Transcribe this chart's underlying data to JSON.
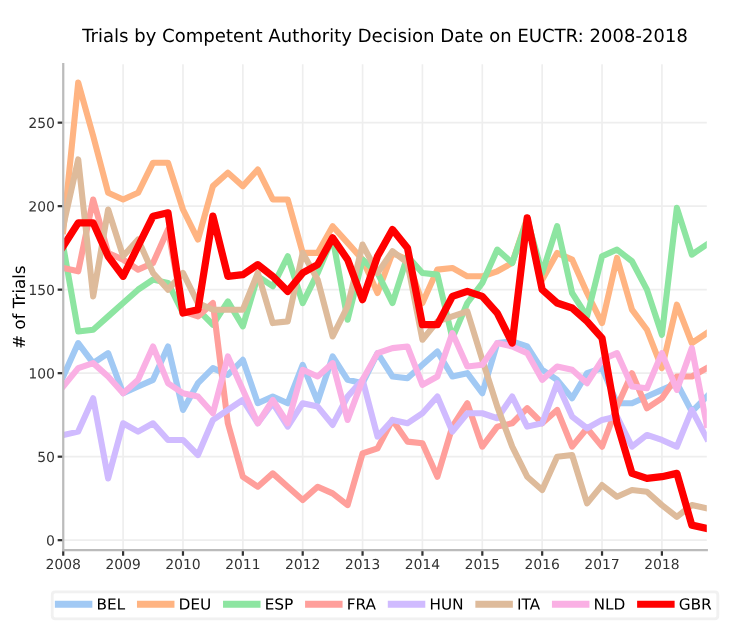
{
  "chart_data": {
    "type": "line",
    "title": "Trials by Competent Authority Decision Date on EUCTR: 2008-2018",
    "ylabel": "# of Trials",
    "x": [
      2008.0,
      2008.25,
      2008.5,
      2008.75,
      2009.0,
      2009.25,
      2009.5,
      2009.75,
      2010.0,
      2010.25,
      2010.5,
      2010.75,
      2011.0,
      2011.25,
      2011.5,
      2011.75,
      2012.0,
      2012.25,
      2012.5,
      2012.75,
      2013.0,
      2013.25,
      2013.5,
      2013.75,
      2014.0,
      2014.25,
      2014.5,
      2014.75,
      2015.0,
      2015.25,
      2015.5,
      2015.75,
      2016.0,
      2016.25,
      2016.5,
      2016.75,
      2017.0,
      2017.25,
      2017.5,
      2017.75,
      2018.0,
      2018.25,
      2018.5,
      2018.75
    ],
    "series": [
      {
        "name": "BEL",
        "color": "#a1c9f4",
        "values": [
          98,
          118,
          106,
          112,
          88,
          92,
          96,
          116,
          78,
          94,
          103,
          99,
          108,
          82,
          86,
          82,
          105,
          83,
          110,
          96,
          94,
          112,
          98,
          97,
          105,
          113,
          98,
          100,
          88,
          118,
          119,
          116,
          102,
          96,
          85,
          100,
          103,
          82,
          82,
          86,
          90,
          94,
          77,
          86
        ]
      },
      {
        "name": "DEU",
        "color": "#ffb482",
        "values": [
          185,
          274,
          242,
          208,
          204,
          208,
          226,
          226,
          198,
          180,
          212,
          220,
          212,
          222,
          204,
          204,
          172,
          172,
          188,
          178,
          168,
          148,
          172,
          168,
          142,
          162,
          163,
          158,
          158,
          161,
          166,
          193,
          156,
          172,
          168,
          148,
          130,
          169,
          138,
          126,
          103,
          141,
          118,
          124
        ]
      },
      {
        "name": "ESP",
        "color": "#8de5a1",
        "values": [
          176,
          125,
          126,
          134,
          142,
          150,
          156,
          154,
          136,
          138,
          129,
          143,
          128,
          158,
          152,
          170,
          142,
          160,
          181,
          132,
          168,
          160,
          142,
          170,
          160,
          159,
          121,
          142,
          154,
          174,
          166,
          192,
          160,
          188,
          148,
          134,
          170,
          174,
          167,
          150,
          123,
          199,
          171,
          177
        ]
      },
      {
        "name": "FRA",
        "color": "#ff9f9b",
        "values": [
          163,
          161,
          204,
          172,
          168,
          162,
          166,
          186,
          137,
          134,
          142,
          70,
          38,
          32,
          40,
          32,
          24,
          32,
          28,
          21,
          52,
          55,
          72,
          59,
          58,
          38,
          68,
          82,
          56,
          68,
          70,
          79,
          70,
          78,
          56,
          67,
          56,
          80,
          100,
          79,
          85,
          98,
          98,
          103
        ]
      },
      {
        "name": "HUN",
        "color": "#d0bbff",
        "values": [
          63,
          65,
          85,
          37,
          70,
          65,
          70,
          60,
          60,
          51,
          72,
          78,
          84,
          70,
          82,
          68,
          82,
          80,
          69,
          86,
          96,
          62,
          72,
          70,
          76,
          86,
          65,
          76,
          76,
          73,
          86,
          68,
          70,
          94,
          74,
          67,
          72,
          74,
          56,
          63,
          60,
          56,
          78,
          61
        ]
      },
      {
        "name": "ITA",
        "color": "#debb9b",
        "values": [
          188,
          228,
          146,
          198,
          170,
          180,
          160,
          150,
          160,
          142,
          138,
          138,
          138,
          160,
          130,
          131,
          172,
          156,
          122,
          140,
          177,
          160,
          173,
          166,
          120,
          131,
          134,
          137,
          108,
          80,
          56,
          38,
          30,
          50,
          51,
          22,
          33,
          26,
          30,
          29,
          21,
          14,
          21,
          19
        ]
      },
      {
        "name": "NLD",
        "color": "#fab0e4",
        "values": [
          92,
          103,
          106,
          98,
          88,
          96,
          116,
          94,
          88,
          86,
          76,
          110,
          90,
          70,
          84,
          70,
          102,
          98,
          106,
          72,
          96,
          112,
          115,
          116,
          93,
          98,
          124,
          104,
          105,
          118,
          116,
          112,
          96,
          104,
          102,
          94,
          108,
          112,
          92,
          91,
          112,
          90,
          115,
          69
        ]
      },
      {
        "name": "GBR",
        "color": "#ff0000",
        "values": [
          176,
          190,
          190,
          170,
          158,
          176,
          194,
          196,
          136,
          138,
          194,
          158,
          159,
          165,
          158,
          149,
          160,
          165,
          181,
          168,
          144,
          170,
          186,
          175,
          129,
          129,
          146,
          149,
          146,
          136,
          118,
          193,
          150,
          142,
          139,
          131,
          121,
          70,
          40,
          37,
          38,
          40,
          9,
          7
        ]
      }
    ],
    "xlim": [
      2008,
      2018.75
    ],
    "xticks": [
      2008,
      2009,
      2010,
      2011,
      2012,
      2013,
      2014,
      2015,
      2016,
      2017,
      2018
    ],
    "ylim": [
      -6,
      285
    ],
    "yticks": [
      0,
      50,
      100,
      150,
      200,
      250
    ],
    "grid": true,
    "legend": "bottom",
    "line_style": "solid",
    "marker": "none"
  }
}
